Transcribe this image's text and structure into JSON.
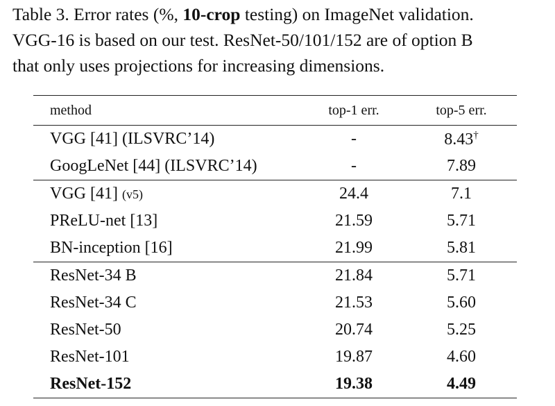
{
  "caption": {
    "lines": [
      [
        {
          "text": "Table 3. Error rates (%, "
        },
        {
          "text": "10-crop",
          "bold": true
        },
        {
          "text": " testing) on ImageNet validation."
        }
      ],
      [
        {
          "text": "VGG-16 is based on our test. ResNet-50/101/152 are of option B"
        }
      ],
      [
        {
          "text": "that only uses projections for increasing dimensions."
        }
      ]
    ]
  },
  "table": {
    "header": [
      "method",
      "top-1 err.",
      "top-5 err."
    ],
    "groups": [
      [
        {
          "method": "VGG [41] (ILSVRC’14)",
          "top1": "-",
          "top5": "8.43",
          "top5_sup": "†"
        },
        {
          "method": "GoogLeNet [44] (ILSVRC’14)",
          "top1": "-",
          "top5": "7.89"
        }
      ],
      [
        {
          "method": "VGG [41]",
          "method_note": "(v5)",
          "top1": "24.4",
          "top5": "7.1"
        },
        {
          "method": "PReLU-net [13]",
          "top1": "21.59",
          "top5": "5.71"
        },
        {
          "method": "BN-inception [16]",
          "top1": "21.99",
          "top5": "5.81"
        }
      ],
      [
        {
          "method": "ResNet-34 B",
          "top1": "21.84",
          "top5": "5.71"
        },
        {
          "method": "ResNet-34 C",
          "top1": "21.53",
          "top5": "5.60"
        },
        {
          "method": "ResNet-50",
          "top1": "20.74",
          "top5": "5.25"
        },
        {
          "method": "ResNet-101",
          "top1": "19.87",
          "top5": "4.60"
        },
        {
          "method": "ResNet-152",
          "top1": "19.38",
          "top5": "4.49",
          "bold": true
        }
      ]
    ]
  }
}
